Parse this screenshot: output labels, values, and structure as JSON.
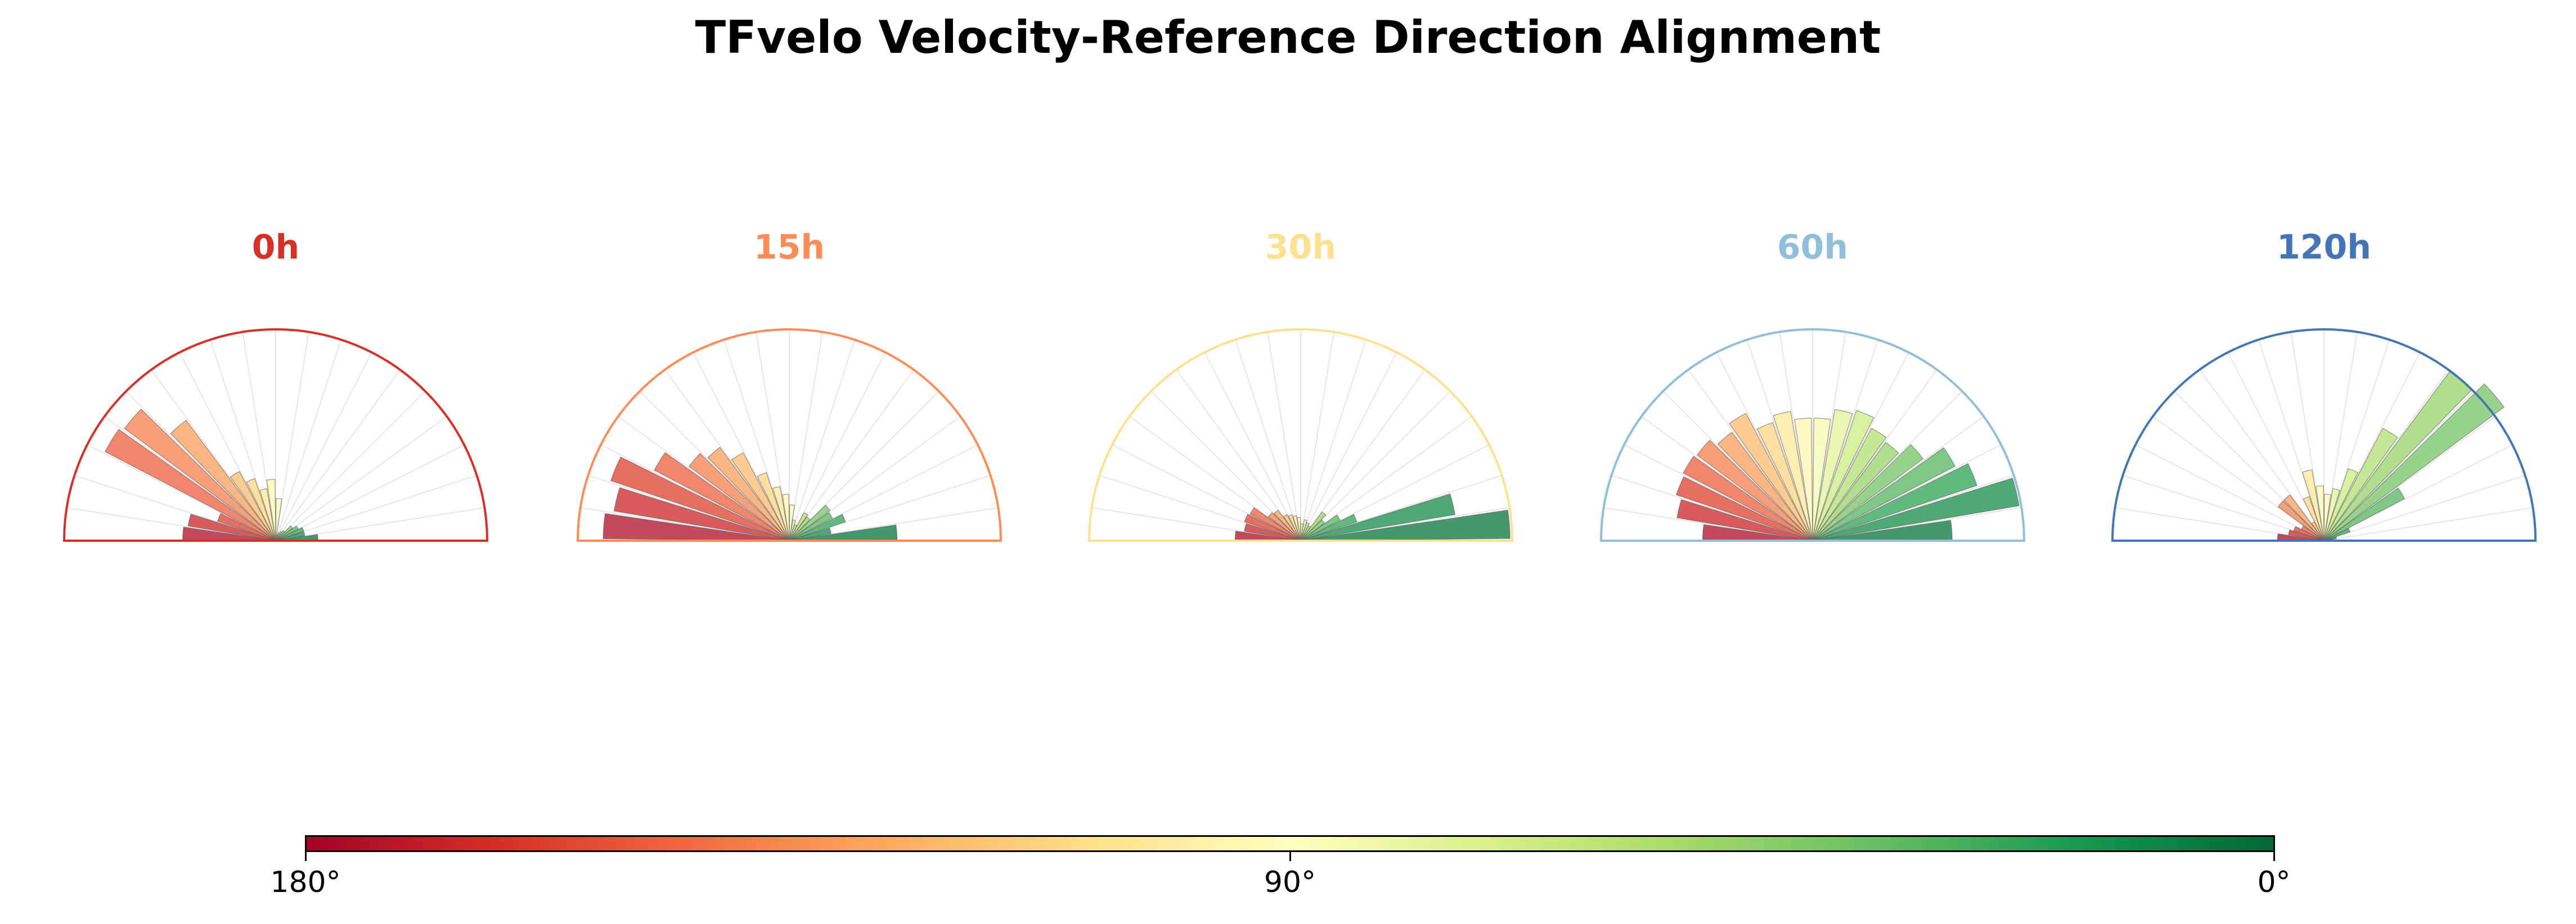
{
  "title": "TFvelo Velocity-Reference Direction Alignment",
  "chart_data": {
    "type": "polar-histogram",
    "angle_range_deg": [
      0,
      180
    ],
    "bin_width_deg": 9,
    "bin_centers_deg": [
      4.5,
      13.5,
      22.5,
      31.5,
      40.5,
      49.5,
      58.5,
      67.5,
      76.5,
      85.5,
      94.5,
      103.5,
      112.5,
      121.5,
      130.5,
      139.5,
      148.5,
      157.5,
      166.5,
      175.5
    ],
    "radius_max": 1.0,
    "panels": [
      {
        "label": "0h",
        "color": "#d73027",
        "values": [
          0.2,
          0.14,
          0.14,
          0.12,
          0.1,
          0.06,
          0.05,
          0.04,
          0.03,
          0.2,
          0.29,
          0.25,
          0.31,
          0.37,
          0.71,
          0.89,
          0.91,
          0.29,
          0.42,
          0.44
        ]
      },
      {
        "label": "15h",
        "color": "#fc8d59",
        "values": [
          0.51,
          0.2,
          0.28,
          0.23,
          0.24,
          0.14,
          0.15,
          0.08,
          0.1,
          0.17,
          0.22,
          0.26,
          0.34,
          0.47,
          0.55,
          0.59,
          0.72,
          0.89,
          0.84,
          0.88
        ]
      },
      {
        "label": "30h",
        "color": "#fee090",
        "values": [
          0.99,
          0.74,
          0.28,
          0.21,
          0.14,
          0.17,
          0.08,
          0.09,
          0.1,
          0.08,
          0.11,
          0.12,
          0.13,
          0.14,
          0.18,
          0.19,
          0.27,
          0.28,
          0.27,
          0.31
        ]
      },
      {
        "label": "60h",
        "color": "#91bfdb",
        "values": [
          0.66,
          0.99,
          0.82,
          0.76,
          0.65,
          0.58,
          0.6,
          0.65,
          0.63,
          0.58,
          0.58,
          0.62,
          0.59,
          0.68,
          0.64,
          0.68,
          0.69,
          0.68,
          0.65,
          0.52
        ]
      },
      {
        "label": "120h",
        "color": "#4575b4",
        "values": [
          0.04,
          0.06,
          0.13,
          0.43,
          1.06,
          1.0,
          0.6,
          0.36,
          0.25,
          0.22,
          0.26,
          0.34,
          0.22,
          0.1,
          0.27,
          0.27,
          0.12,
          0.15,
          0.17,
          0.22
        ]
      }
    ],
    "colorbar": {
      "colormap": "RdYlGn",
      "ticks": [
        "180°",
        "90°",
        "0°"
      ],
      "left_end_deg": 180,
      "right_end_deg": 0
    },
    "grid": true
  }
}
